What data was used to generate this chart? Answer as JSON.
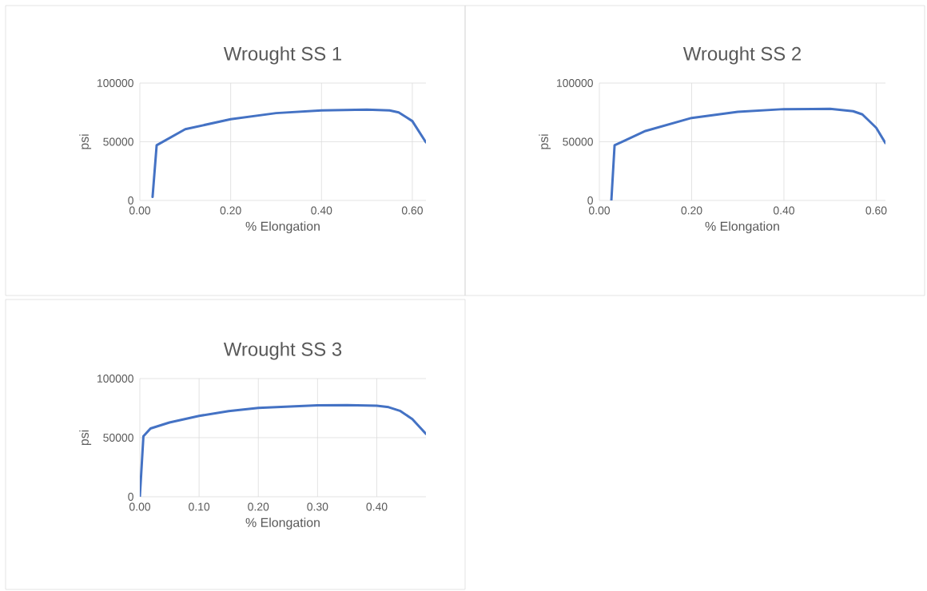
{
  "chart_data": [
    {
      "type": "line",
      "title": "Wrought SS 1",
      "xlabel": "% Elongation",
      "ylabel": "psi",
      "x": [
        0.028,
        0.037,
        0.1,
        0.2,
        0.3,
        0.4,
        0.5,
        0.55,
        0.57,
        0.6,
        0.63
      ],
      "series": [
        {
          "color": "#4472c4",
          "values": [
            3000,
            47000,
            60700,
            69200,
            74400,
            76700,
            77300,
            76700,
            75000,
            67600,
            49500
          ]
        }
      ],
      "xlim": [
        0,
        0.63
      ],
      "ylim": [
        0,
        100000
      ],
      "xticks": [
        {
          "value": 0,
          "label": "0.00"
        },
        {
          "value": 0.2,
          "label": "0.20"
        },
        {
          "value": 0.4,
          "label": "0.40"
        },
        {
          "value": 0.6,
          "label": "0.60"
        }
      ],
      "yticks": [
        0,
        50000,
        100000
      ],
      "grid": true
    },
    {
      "type": "line",
      "title": "Wrought SS 2",
      "xlabel": "% Elongation",
      "ylabel": "psi",
      "x": [
        0.026,
        0.033,
        0.05,
        0.1,
        0.2,
        0.3,
        0.4,
        0.5,
        0.55,
        0.57,
        0.6,
        0.62
      ],
      "series": [
        {
          "color": "#4472c4",
          "values": [
            0,
            47100,
            50100,
            59200,
            70300,
            75500,
            77800,
            78000,
            76000,
            73300,
            61900,
            48800
          ]
        }
      ],
      "xlim": [
        0,
        0.62
      ],
      "ylim": [
        0,
        100000
      ],
      "xticks": [
        {
          "value": 0,
          "label": "0.00"
        },
        {
          "value": 0.2,
          "label": "0.20"
        },
        {
          "value": 0.4,
          "label": "0.40"
        },
        {
          "value": 0.6,
          "label": "0.60"
        }
      ],
      "yticks": [
        0,
        50000,
        100000
      ],
      "grid": true
    },
    {
      "type": "line",
      "title": "Wrought SS 3",
      "xlabel": "% Elongation",
      "ylabel": "psi",
      "x": [
        0,
        0.006,
        0.018,
        0.05,
        0.1,
        0.15,
        0.2,
        0.3,
        0.35,
        0.4,
        0.42,
        0.44,
        0.46,
        0.483
      ],
      "series": [
        {
          "color": "#4472c4",
          "values": [
            0,
            51100,
            57800,
            62800,
            68400,
            72500,
            75200,
            77400,
            77600,
            77000,
            75800,
            72500,
            65700,
            53300
          ]
        }
      ],
      "xlim": [
        0,
        0.483
      ],
      "ylim": [
        0,
        100000
      ],
      "xticks": [
        {
          "value": 0,
          "label": "0.00"
        },
        {
          "value": 0.1,
          "label": "0.10"
        },
        {
          "value": 0.2,
          "label": "0.20"
        },
        {
          "value": 0.3,
          "label": "0.30"
        },
        {
          "value": 0.4,
          "label": "0.40"
        }
      ],
      "yticks": [
        0,
        50000,
        100000
      ],
      "grid": true
    }
  ]
}
